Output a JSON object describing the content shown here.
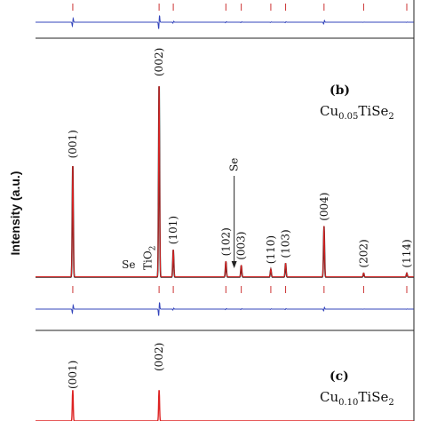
{
  "chart_data": {
    "type": "line",
    "ylabel": "Intensity (a.u.)",
    "x_range": [
      8,
      72
    ],
    "colors": {
      "observed": "#222222",
      "calculated": "#dd2222",
      "difference": "#3344bb",
      "ticks": "#cc3333"
    },
    "panels": [
      {
        "letter": "(b)",
        "sample": {
          "base": "Cu",
          "sub1": "0.05",
          "mid": "TiSe",
          "sub2": "2"
        },
        "peaks": [
          {
            "label": "(001)",
            "x": 14.3,
            "intensity": 0.58
          },
          {
            "label": "(002)",
            "x": 28.9,
            "intensity": 1.0
          },
          {
            "label": "(101)",
            "x": 31.3,
            "intensity": 0.14
          },
          {
            "label": "(102)",
            "x": 40.2,
            "intensity": 0.08
          },
          {
            "label": "(003)",
            "x": 42.8,
            "intensity": 0.06
          },
          {
            "label": "(110)",
            "x": 47.8,
            "intensity": 0.04
          },
          {
            "label": "(103)",
            "x": 50.3,
            "intensity": 0.07
          },
          {
            "label": "(004)",
            "x": 56.8,
            "intensity": 0.26
          },
          {
            "label": "(202)",
            "x": 63.5,
            "intensity": 0.02
          },
          {
            "label": "(114)",
            "x": 70.8,
            "intensity": 0.02
          }
        ],
        "impurities": [
          {
            "label": "Se",
            "x": 23.5
          },
          {
            "label": "TiO",
            "sub": "2",
            "x": 27.0
          },
          {
            "label": "Se",
            "x": 41.6
          }
        ]
      },
      {
        "letter": "(c)",
        "sample": {
          "base": "Cu",
          "sub1": "0.10",
          "mid": "TiSe",
          "sub2": "2"
        },
        "peaks": [
          {
            "label": "(001)",
            "x": 14.3
          },
          {
            "label": "(002)",
            "x": 28.9
          }
        ]
      }
    ]
  }
}
